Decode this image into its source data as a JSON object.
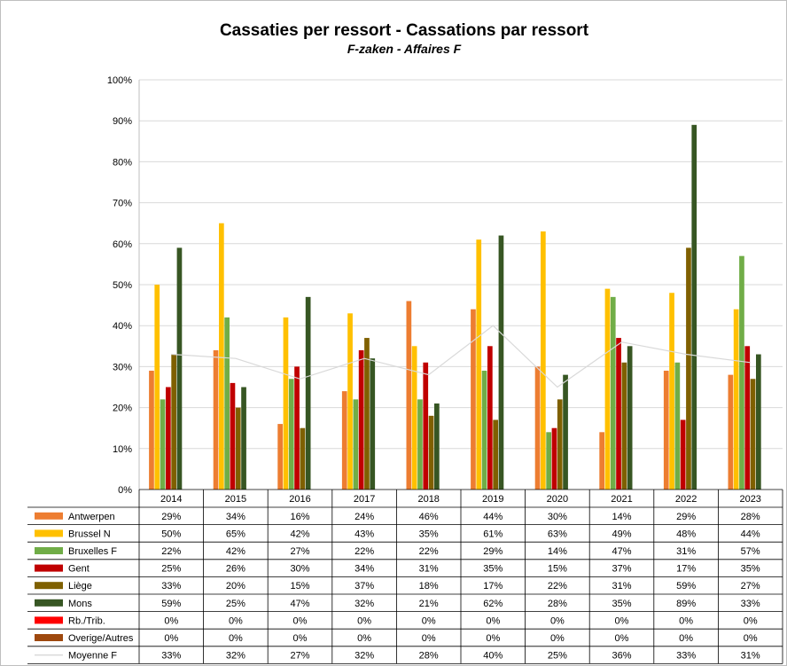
{
  "chart_data": {
    "type": "bar",
    "title": "Cassaties per ressort - Cassations par ressort",
    "subtitle": "F-zaken - Affaires F",
    "categories": [
      "2014",
      "2015",
      "2016",
      "2017",
      "2018",
      "2019",
      "2020",
      "2021",
      "2022",
      "2023"
    ],
    "ylim": [
      0,
      100
    ],
    "yticks": [
      "0%",
      "10%",
      "20%",
      "30%",
      "40%",
      "50%",
      "60%",
      "70%",
      "80%",
      "90%",
      "100%"
    ],
    "grid": true,
    "legend": "data-table-below",
    "series": [
      {
        "name": "Antwerpen",
        "color": "#ed7d31",
        "values": [
          29,
          34,
          16,
          24,
          46,
          44,
          30,
          14,
          29,
          28
        ],
        "labels": [
          "29%",
          "34%",
          "16%",
          "24%",
          "46%",
          "44%",
          "30%",
          "14%",
          "29%",
          "28%"
        ]
      },
      {
        "name": "Brussel N",
        "color": "#ffc000",
        "values": [
          50,
          65,
          42,
          43,
          35,
          61,
          63,
          49,
          48,
          44
        ],
        "labels": [
          "50%",
          "65%",
          "42%",
          "43%",
          "35%",
          "61%",
          "63%",
          "49%",
          "48%",
          "44%"
        ]
      },
      {
        "name": "Bruxelles F",
        "color": "#70ad47",
        "values": [
          22,
          42,
          27,
          22,
          22,
          29,
          14,
          47,
          31,
          57
        ],
        "labels": [
          "22%",
          "42%",
          "27%",
          "22%",
          "22%",
          "29%",
          "14%",
          "47%",
          "31%",
          "57%"
        ]
      },
      {
        "name": "Gent",
        "color": "#c00000",
        "values": [
          25,
          26,
          30,
          34,
          31,
          35,
          15,
          37,
          17,
          35
        ],
        "labels": [
          "25%",
          "26%",
          "30%",
          "34%",
          "31%",
          "35%",
          "15%",
          "37%",
          "17%",
          "35%"
        ]
      },
      {
        "name": "Liège",
        "color": "#7f6000",
        "values": [
          33,
          20,
          15,
          37,
          18,
          17,
          22,
          31,
          59,
          27
        ],
        "labels": [
          "33%",
          "20%",
          "15%",
          "37%",
          "18%",
          "17%",
          "22%",
          "31%",
          "59%",
          "27%"
        ]
      },
      {
        "name": "Mons",
        "color": "#375623",
        "values": [
          59,
          25,
          47,
          32,
          21,
          62,
          28,
          35,
          89,
          33
        ],
        "labels": [
          "59%",
          "25%",
          "47%",
          "32%",
          "21%",
          "62%",
          "28%",
          "35%",
          "89%",
          "33%"
        ]
      },
      {
        "name": "Rb./Trib.",
        "color": "#ff0000",
        "values": [
          0,
          0,
          0,
          0,
          0,
          0,
          0,
          0,
          0,
          0
        ],
        "labels": [
          "0%",
          "0%",
          "0%",
          "0%",
          "0%",
          "0%",
          "0%",
          "0%",
          "0%",
          "0%"
        ]
      },
      {
        "name": "Overige/Autres",
        "color": "#9e480e",
        "values": [
          0,
          0,
          0,
          0,
          0,
          0,
          0,
          0,
          0,
          0
        ],
        "labels": [
          "0%",
          "0%",
          "0%",
          "0%",
          "0%",
          "0%",
          "0%",
          "0%",
          "0%",
          "0%"
        ]
      }
    ],
    "line_series": {
      "name": "Moyenne F",
      "color": "#d9d9d9",
      "values": [
        33,
        32,
        27,
        32,
        28,
        40,
        25,
        36,
        33,
        31
      ],
      "labels": [
        "33%",
        "32%",
        "27%",
        "32%",
        "28%",
        "40%",
        "25%",
        "36%",
        "33%",
        "31%"
      ]
    }
  }
}
